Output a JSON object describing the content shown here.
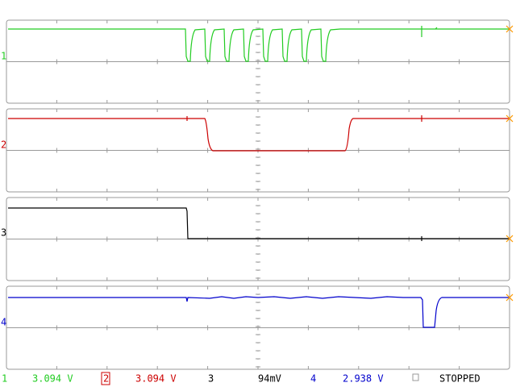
{
  "channels": [
    {
      "marker": "1"
    },
    {
      "marker": "2"
    },
    {
      "marker": "3"
    },
    {
      "marker": "4"
    }
  ],
  "status_bar": {
    "items": [
      {
        "channel": "1",
        "reading": "3.094 V"
      },
      {
        "channel": "2",
        "reading": "3.094 V"
      },
      {
        "channel": "3",
        "reading": "94mV"
      },
      {
        "channel": "4",
        "reading": "2.938 V"
      }
    ],
    "state": "STOPPED"
  }
}
